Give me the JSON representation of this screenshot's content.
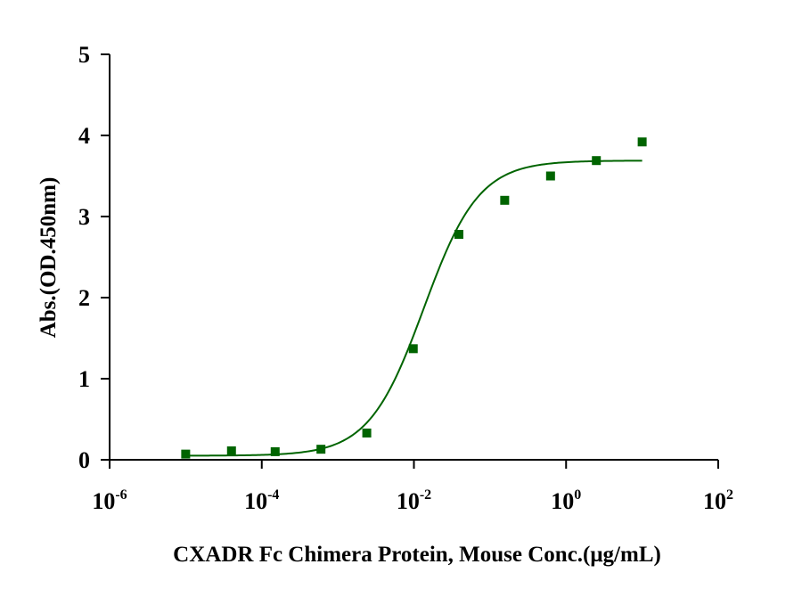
{
  "chart_data": {
    "type": "scatter",
    "xlabel": "CXADR Fc Chimera Protein, Mouse Conc.(μg/mL)",
    "ylabel": "Abs.(OD.450nm)",
    "xscale": "log",
    "xlim": [
      1e-06,
      100
    ],
    "ylim": [
      0,
      5
    ],
    "grid": false,
    "colors": {
      "series": "#006400",
      "axis": "#000000"
    },
    "x_ticks": [
      {
        "base": "10",
        "exp": "-6",
        "value": 1e-06
      },
      {
        "base": "10",
        "exp": "-4",
        "value": 0.0001
      },
      {
        "base": "10",
        "exp": "-2",
        "value": 0.01
      },
      {
        "base": "10",
        "exp": "0",
        "value": 1
      },
      {
        "base": "10",
        "exp": "2",
        "value": 100
      }
    ],
    "y_ticks": [
      0,
      1,
      2,
      3,
      4,
      5
    ],
    "series": [
      {
        "marker": "square",
        "x": [
          1e-05,
          4e-05,
          0.00015,
          0.0006,
          0.0024,
          0.0098,
          0.039,
          0.156,
          0.625,
          2.5,
          10
        ],
        "y": [
          0.07,
          0.11,
          0.1,
          0.13,
          0.33,
          1.37,
          2.78,
          3.2,
          3.5,
          3.69,
          3.92
        ]
      }
    ],
    "fit": {
      "type": "4PL",
      "bottom": 0.05,
      "top": 3.69,
      "ec50": 0.0135,
      "hill": 1.2,
      "x_range": [
        1e-05,
        10
      ]
    }
  }
}
